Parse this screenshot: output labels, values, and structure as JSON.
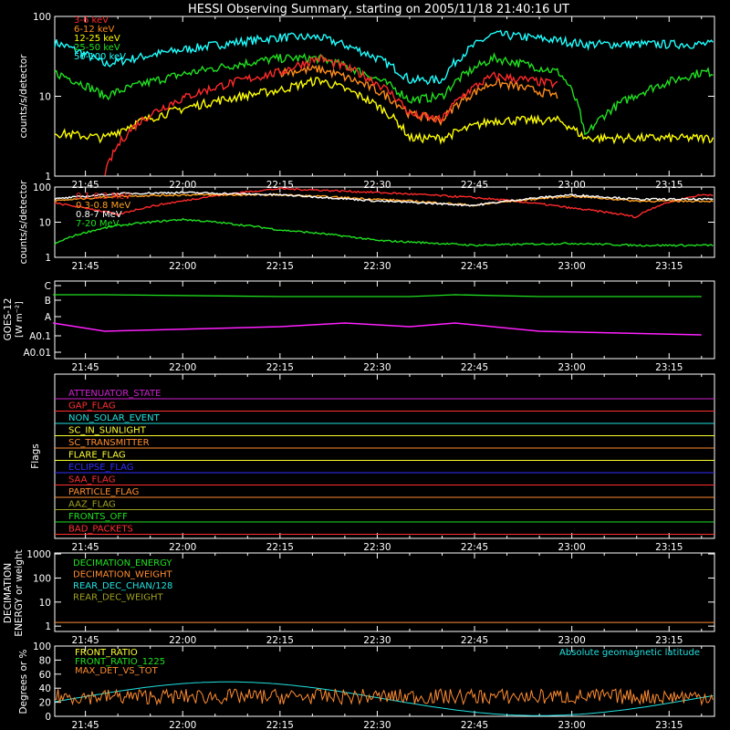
{
  "title": "HESSI Observing Summary, starting on 2005/11/18 21:40:16 UT",
  "time_ticks": [
    "21:45",
    "22:00",
    "22:15",
    "22:30",
    "22:45",
    "23:00",
    "23:15"
  ],
  "chart_data": [
    {
      "type": "line",
      "panel": "lightcurves-low",
      "ylabel": "counts/s/detector",
      "yscale": "log",
      "ylim": [
        1,
        100
      ],
      "ytick_labels": [
        "1",
        "10",
        "100"
      ],
      "legend": [
        "3-6 keV",
        "6-12 keV",
        "12-25 keV",
        "25-50 keV",
        "50-100 keV"
      ],
      "colors": [
        "#ff2a2a",
        "#ff8c1a",
        "#ffff00",
        "#20e020",
        "#20ffff"
      ],
      "x": [
        "21:40",
        "21:48",
        "22:15",
        "22:21",
        "22:35",
        "22:40",
        "22:48",
        "22:58",
        "23:02",
        "23:20"
      ],
      "series": [
        {
          "values": [
            null,
            1,
            20,
            30,
            6,
            5,
            18,
            14,
            null,
            null
          ]
        },
        {
          "values": [
            null,
            null,
            20,
            22,
            6,
            5,
            15,
            10,
            null,
            null
          ]
        },
        {
          "values": [
            3.5,
            3,
            12,
            16,
            3,
            3,
            5,
            5,
            3,
            3
          ]
        },
        {
          "values": [
            20,
            10,
            30,
            30,
            9,
            10,
            30,
            20,
            3,
            20
          ]
        },
        {
          "values": [
            48,
            25,
            55,
            55,
            16,
            16,
            60,
            50,
            45,
            45
          ]
        }
      ]
    },
    {
      "type": "line",
      "panel": "lightcurves-high",
      "ylabel": "counts/s/detector",
      "yscale": "log",
      "ylim": [
        1,
        100
      ],
      "ytick_labels": [
        "1",
        "10",
        "100"
      ],
      "legend": [
        "0.1-0.3 MeV",
        "0.3-0.8 MeV",
        "0.8-7 MeV",
        "7-20 MeV"
      ],
      "colors": [
        "#ff2a2a",
        "#ffa020",
        "#ffffff",
        "#20e020"
      ],
      "x": [
        "21:40",
        "21:50",
        "22:00",
        "22:15",
        "22:30",
        "22:45",
        "23:00",
        "23:10",
        "23:20"
      ],
      "series": [
        {
          "values": [
            35,
            16,
            40,
            90,
            70,
            50,
            25,
            14,
            60
          ]
        },
        {
          "values": [
            40,
            55,
            60,
            60,
            45,
            30,
            55,
            40,
            40
          ]
        },
        {
          "values": [
            45,
            65,
            70,
            60,
            40,
            30,
            60,
            45,
            45
          ]
        },
        {
          "values": [
            2.2,
            8,
            12,
            6,
            3,
            2.2,
            2.5,
            2.2,
            2.2
          ]
        }
      ]
    },
    {
      "type": "line",
      "panel": "goes",
      "ylabel": "GOES-12",
      "yunit": "[W m⁻²]",
      "ytick_labels": [
        "C",
        "B",
        "A",
        "A0.1",
        "A0.01"
      ],
      "colors": [
        "#20e020",
        "#ff20ff"
      ],
      "x": [
        "21:40",
        "21:48",
        "22:15",
        "22:25",
        "22:35",
        "22:42",
        "22:55",
        "23:20"
      ],
      "series": [
        {
          "values": [
            "B-high",
            "B-high",
            "B",
            "B",
            "B",
            "B-high",
            "B",
            "B"
          ]
        },
        {
          "values": [
            "A0.3",
            "A0.15",
            "A0.2",
            "A0.3",
            "A0.2",
            "A0.3",
            "A0.15",
            "A0.1"
          ]
        }
      ]
    },
    {
      "type": "timeline",
      "panel": "flags",
      "ylabel": "Flags",
      "flags": [
        {
          "name": "ATTENUATOR_STATE",
          "color": "#d020d0"
        },
        {
          "name": "GAP_FLAG",
          "color": "#ff3030"
        },
        {
          "name": "NON_SOLAR_EVENT",
          "color": "#20e0e0"
        },
        {
          "name": "SC_IN_SUNLIGHT",
          "color": "#ffff30"
        },
        {
          "name": "SC_TRANSMITTER",
          "color": "#ff8c30"
        },
        {
          "name": "FLARE_FLAG",
          "color": "#ffff30"
        },
        {
          "name": "ECLIPSE_FLAG",
          "color": "#3030ff"
        },
        {
          "name": "SAA_FLAG",
          "color": "#ff3030"
        },
        {
          "name": "PARTICLE_FLAG",
          "color": "#ff8c30"
        },
        {
          "name": "AAZ_FLAG",
          "color": "#a0a020"
        },
        {
          "name": "FRONTS_OFF",
          "color": "#20e020"
        },
        {
          "name": "BAD_PACKETS",
          "color": "#ff3030"
        }
      ]
    },
    {
      "type": "line",
      "panel": "decimation",
      "ylabel": "DECIMATION",
      "ylabel2": "ENERGY or weight",
      "yscale": "log",
      "ytick_labels": [
        "1",
        "10",
        "100",
        "1000"
      ],
      "legend": [
        "DECIMATION_ENERGY",
        "DECIMATION_WEIGHT",
        "REAR_DEC_CHAN/128",
        "REAR_DEC_WEIGHT"
      ],
      "colors": [
        "#20e020",
        "#ff8c30",
        "#20e0e0",
        "#a0a020"
      ]
    },
    {
      "type": "line",
      "panel": "ratios",
      "ylabel": "Degrees or %",
      "ylim": [
        0,
        100
      ],
      "ytick_labels": [
        "0",
        "20",
        "40",
        "60",
        "80",
        "100"
      ],
      "legend": [
        "FRONT_RATIO",
        "FRONT_RATIO_1225",
        "MAX_DET_VS_TOT"
      ],
      "legend_right": "Absolute geomagnetic latitude",
      "colors": [
        "#ffff30",
        "#20e020",
        "#ff8c30",
        "#20e0e0"
      ]
    }
  ]
}
